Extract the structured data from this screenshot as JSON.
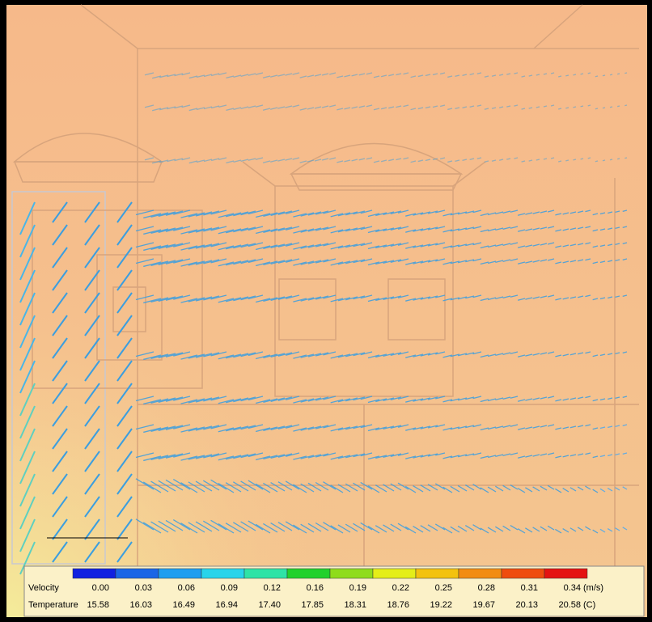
{
  "legend": {
    "velocity_label": "Velocity",
    "velocity_values": [
      "0.00",
      "0.03",
      "0.06",
      "0.09",
      "0.12",
      "0.16",
      "0.19",
      "0.22",
      "0.25",
      "0.28",
      "0.31",
      "0.34"
    ],
    "velocity_unit": "(m/s)",
    "temperature_label": "Temperature",
    "temperature_values": [
      "15.58",
      "16.03",
      "16.49",
      "16.94",
      "17.40",
      "17.85",
      "18.31",
      "18.76",
      "19.22",
      "19.67",
      "20.13",
      "20.58"
    ],
    "temperature_unit": "(C)",
    "colors": [
      "#1020e0",
      "#1a66e6",
      "#1e9ef0",
      "#28d4ea",
      "#2fe3a6",
      "#22d12c",
      "#8fdc1c",
      "#e4ee18",
      "#f3c20e",
      "#f28c12",
      "#ef4c0e",
      "#e41212"
    ]
  }
}
